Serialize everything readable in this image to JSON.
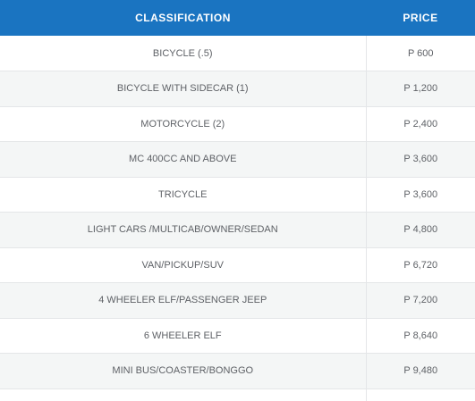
{
  "table": {
    "headers": {
      "classification": "CLASSIFICATION",
      "price": "PRICE"
    },
    "rows": [
      {
        "classification": "BICYCLE (.5)",
        "price": "P 600"
      },
      {
        "classification": "BICYCLE WITH SIDECAR (1)",
        "price": "P 1,200"
      },
      {
        "classification": "MOTORCYCLE (2)",
        "price": "P 2,400"
      },
      {
        "classification": "MC 400CC AND ABOVE",
        "price": "P 3,600"
      },
      {
        "classification": "TRICYCLE",
        "price": "P 3,600"
      },
      {
        "classification": "LIGHT CARS /MULTICAB/OWNER/SEDAN",
        "price": "P 4,800"
      },
      {
        "classification": "VAN/PICKUP/SUV",
        "price": "P 6,720"
      },
      {
        "classification": "4 WHEELER ELF/PASSENGER JEEP",
        "price": "P 7,200"
      },
      {
        "classification": "6 WHEELER ELF",
        "price": "P 8,640"
      },
      {
        "classification": "MINI BUS/COASTER/BONGGO",
        "price": "P 9,480"
      }
    ]
  },
  "colors": {
    "header_bg": "#1a74c1",
    "header_text": "#ffffff",
    "row_alt_bg": "#f4f6f6",
    "cell_text": "#5e6166"
  }
}
